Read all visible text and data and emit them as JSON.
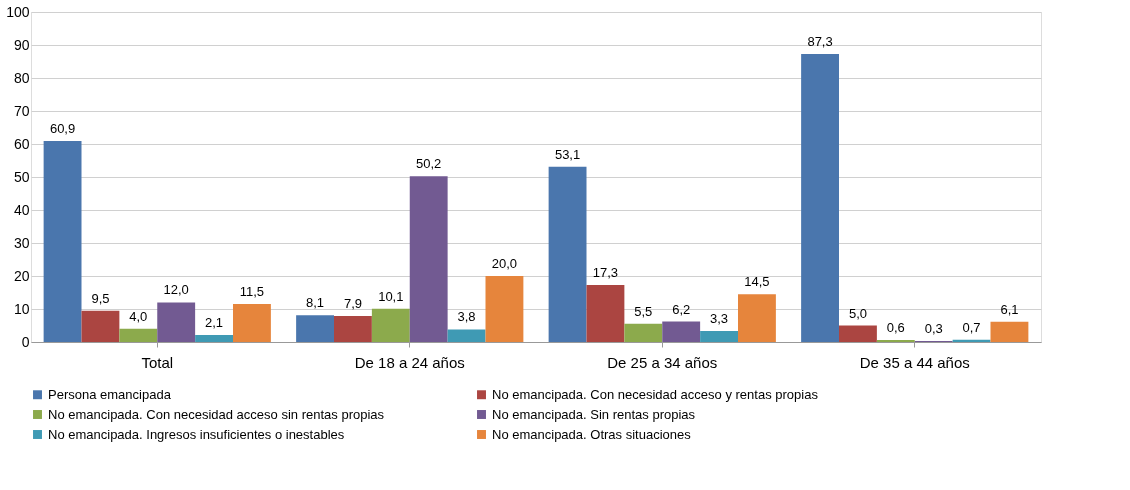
{
  "chart_data": {
    "type": "bar",
    "categories": [
      "Total",
      "De 18 a 24 años",
      "De 25 a 34 años",
      "De 35 a 44 años"
    ],
    "series": [
      {
        "name": "Persona emancipada",
        "color": "#4a76ad",
        "values": [
          60.9,
          8.1,
          53.1,
          87.3
        ],
        "value_labels": [
          "60,9",
          "8,1",
          "53,1",
          "87,3"
        ]
      },
      {
        "name": "No emancipada. Con necesidad acceso y rentas propias",
        "color": "#ab4541",
        "values": [
          9.5,
          7.9,
          17.3,
          5.0
        ],
        "value_labels": [
          "9,5",
          "7,9",
          "17,3",
          "5,0"
        ]
      },
      {
        "name": "No emancipada. Con necesidad acceso sin rentas propias",
        "color": "#8caa4c",
        "values": [
          4.0,
          10.1,
          5.5,
          0.6
        ],
        "value_labels": [
          "4,0",
          "10,1",
          "5,5",
          "0,6"
        ]
      },
      {
        "name": "No emancipada. Sin rentas propias",
        "color": "#725a92",
        "values": [
          12.0,
          50.2,
          6.2,
          0.3
        ],
        "value_labels": [
          "12,0",
          "50,2",
          "6,2",
          "0,3"
        ]
      },
      {
        "name": "No emancipada. Ingresos insuficientes o inestables",
        "color": "#3f9ab4",
        "values": [
          2.1,
          3.8,
          3.3,
          0.7
        ],
        "value_labels": [
          "2,1",
          "3,8",
          "3,3",
          "0,7"
        ]
      },
      {
        "name": "No emancipada. Otras situaciones",
        "color": "#e6853c",
        "values": [
          11.5,
          20.0,
          14.5,
          6.1
        ],
        "value_labels": [
          "11,5",
          "20,0",
          "14,5",
          "6,1"
        ]
      }
    ],
    "ylim": [
      0,
      100
    ],
    "yticks": [
      0,
      10,
      20,
      30,
      40,
      50,
      60,
      70,
      80,
      90,
      100
    ],
    "grid": "y",
    "legend": "bottom"
  }
}
